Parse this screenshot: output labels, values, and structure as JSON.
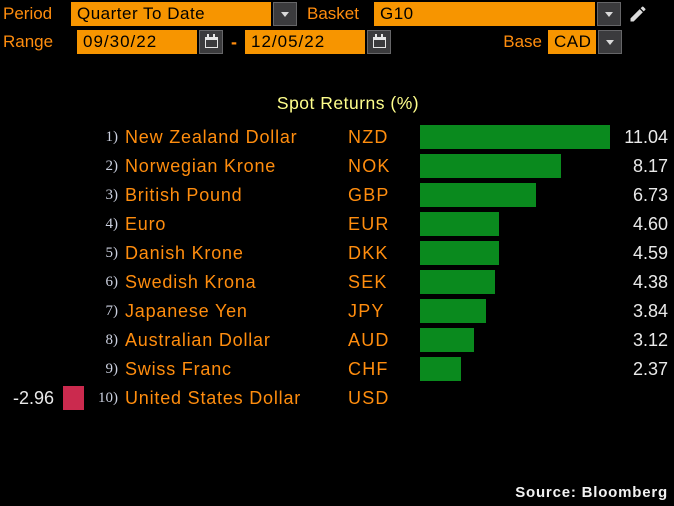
{
  "toolbar": {
    "period_label": "Period",
    "period_value": "Quarter To Date",
    "basket_label": "Basket",
    "basket_value": "G10",
    "range_label": "Range",
    "range_start": "09/30/22",
    "range_separator": "-",
    "range_end": "12/05/22",
    "base_label": "Base",
    "base_value": "CAD"
  },
  "chart_data": {
    "type": "bar",
    "orientation": "horizontal",
    "title": "Spot Returns (%)",
    "categories": [
      "New Zealand Dollar",
      "Norwegian Krone",
      "British Pound",
      "Euro",
      "Danish Krone",
      "Swedish Krona",
      "Japanese Yen",
      "Australian Dollar",
      "Swiss Franc",
      "United States Dollar"
    ],
    "codes": [
      "NZD",
      "NOK",
      "GBP",
      "EUR",
      "DKK",
      "SEK",
      "JPY",
      "AUD",
      "CHF",
      "USD"
    ],
    "ranks": [
      "1)",
      "2)",
      "3)",
      "4)",
      "5)",
      "6)",
      "7)",
      "8)",
      "9)",
      "10)"
    ],
    "values": [
      11.04,
      8.17,
      6.73,
      4.6,
      4.59,
      4.38,
      3.84,
      3.12,
      2.37,
      -2.96
    ],
    "value_labels": [
      "11.04",
      "8.17",
      "6.73",
      "4.60",
      "4.59",
      "4.38",
      "3.84",
      "3.12",
      "2.37",
      "-2.96"
    ],
    "xlim": [
      -2.96,
      11.04
    ],
    "grid": false,
    "legend": "none",
    "positive_color": "#0a8a1e",
    "negative_color": "#cb2a4e"
  },
  "footer": {
    "source": "Source:  Bloomberg"
  },
  "colors": {
    "background": "#000000",
    "label_orange": "#ff8d0e",
    "field_orange": "#f79500",
    "title_yellow": "#ffff8c",
    "value_white": "#e9e9e9",
    "rank_gray": "#ccd1e0",
    "positive_green": "#0a8a1e",
    "negative_red": "#cb2a4e"
  }
}
